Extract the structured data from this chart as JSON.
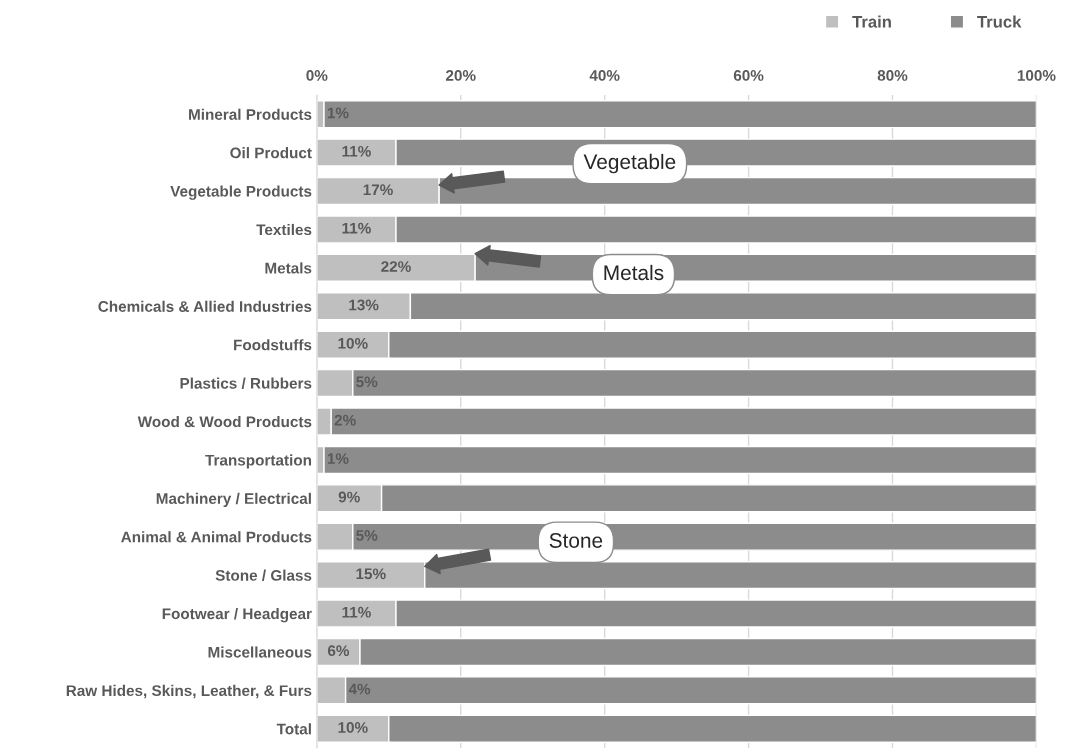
{
  "chart_data": {
    "type": "bar",
    "orientation": "horizontal",
    "stacked": true,
    "categories": [
      "Mineral Products",
      "Oil Product",
      "Vegetable Products",
      "Textiles",
      "Metals",
      "Chemicals & Allied Industries",
      "Foodstuffs",
      "Plastics / Rubbers",
      "Wood & Wood Products",
      "Transportation",
      "Machinery / Electrical",
      "Animal & Animal Products",
      "Stone / Glass",
      "Footwear / Headgear",
      "Miscellaneous",
      "Raw Hides, Skins, Leather, & Furs",
      "Total"
    ],
    "series": [
      {
        "name": "Train",
        "color": "#bfbfbf",
        "values": [
          1,
          11,
          17,
          11,
          22,
          13,
          10,
          5,
          2,
          1,
          9,
          5,
          15,
          11,
          6,
          4,
          10
        ],
        "value_labels": [
          "1%",
          "11%",
          "17%",
          "11%",
          "22%",
          "13%",
          "10%",
          "5%",
          "2%",
          "1%",
          "9%",
          "5%",
          "15%",
          "11%",
          "6%",
          "4%",
          "10%"
        ]
      },
      {
        "name": "Truck",
        "color": "#8c8c8c",
        "values": [
          99,
          89,
          83,
          89,
          78,
          87,
          90,
          95,
          98,
          99,
          91,
          95,
          85,
          89,
          94,
          96,
          90
        ]
      }
    ],
    "xlim": [
      0,
      100
    ],
    "xticks": [
      {
        "value": 0,
        "label": "0%"
      },
      {
        "value": 20,
        "label": "20%"
      },
      {
        "value": 40,
        "label": "40%"
      },
      {
        "value": 60,
        "label": "60%"
      },
      {
        "value": 80,
        "label": "80%"
      },
      {
        "value": 100,
        "label": "100%"
      }
    ],
    "grid": "x",
    "legend": "top right",
    "annotations": [
      "Vegetable",
      "Metals",
      "Stone"
    ]
  }
}
